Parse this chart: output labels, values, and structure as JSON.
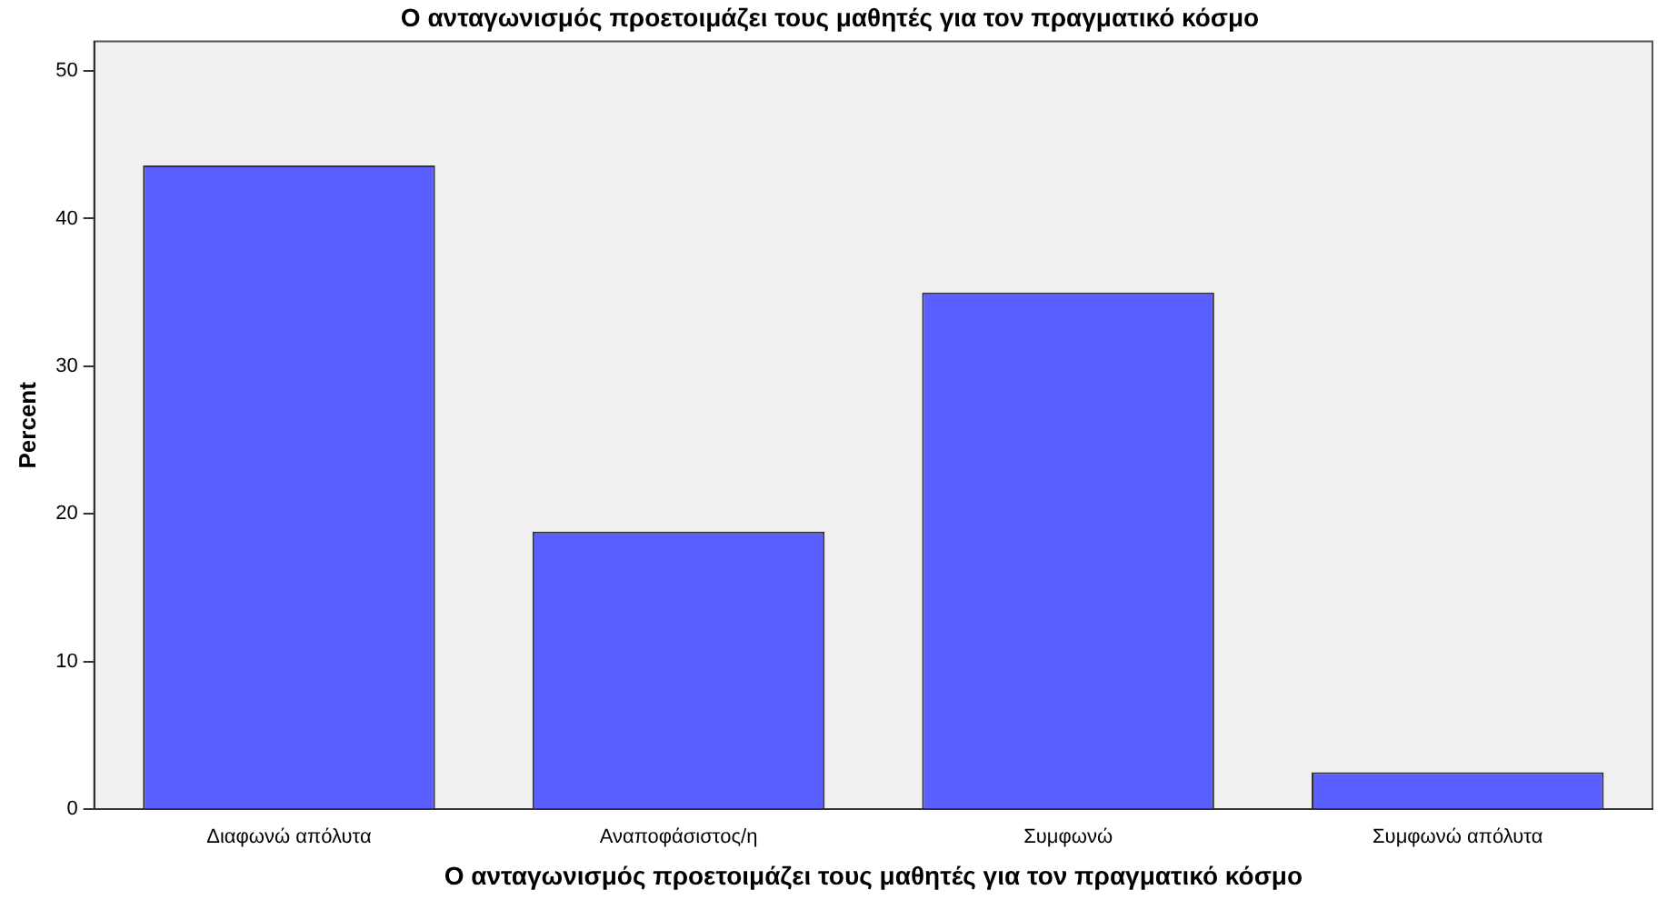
{
  "chart_data": {
    "type": "bar",
    "title": "Ο ανταγωνισμός προετοιμάζει τους μαθητές για τον πραγματικό κόσμο",
    "xlabel": "Ο ανταγωνισμός προετοιμάζει τους μαθητές για τον πραγματικό κόσμο",
    "ylabel": "Percent",
    "categories": [
      "Διαφωνώ απόλυτα",
      "Αναποφάσιστος/η",
      "Συμφωνώ",
      "Συμφωνώ απόλυτα"
    ],
    "values": [
      43.6,
      18.8,
      35.0,
      2.5
    ],
    "color": "#5c5fff",
    "ylim": [
      0,
      52
    ],
    "yticks": [
      0,
      10,
      20,
      30,
      40,
      50
    ],
    "grid": false,
    "legend": false
  }
}
